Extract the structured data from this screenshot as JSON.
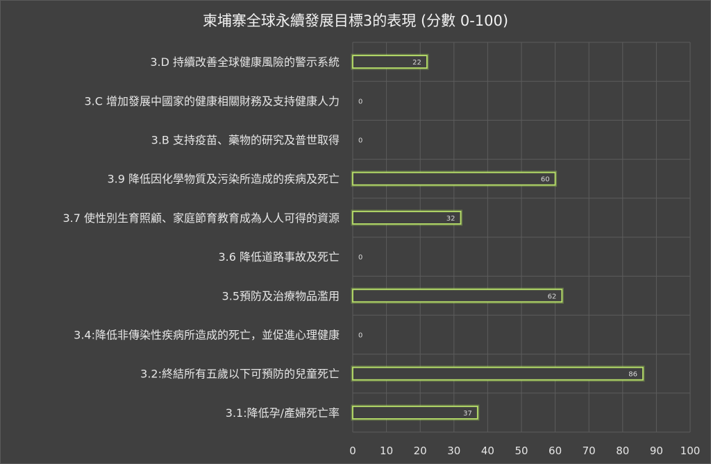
{
  "chart_data": {
    "type": "bar",
    "orientation": "horizontal",
    "title": "柬埔寨全球永續發展目標3的表現 (分數 0-100)",
    "categories": [
      "3.D 持續改善全球健康風險的警示系統",
      "3.C 增加發展中國家的健康相關財務及支持健康人力",
      "3.B 支持疫苗、藥物的研究及普世取得",
      "3.9 降低因化學物質及污染所造成的疾病及死亡",
      "3.7 使性別生育照顧、家庭節育教育成為人人可得的資源",
      "3.6 降低道路事故及死亡",
      "3.5預防及治療物品濫用",
      "3.4:降低非傳染性疾病所造成的死亡，並促進心理健康",
      "3.2:終結所有五歲以下可預防的兒童死亡",
      "3.1:降低孕/產婦死亡率"
    ],
    "values": [
      22,
      0,
      0,
      60,
      32,
      0,
      62,
      0,
      86,
      37
    ],
    "xlim": [
      0,
      100
    ],
    "x_ticks": [
      0,
      10,
      20,
      30,
      40,
      50,
      60,
      70,
      80,
      90,
      100
    ],
    "grid": true,
    "legend": "none",
    "colors": {
      "background": "#404040",
      "bar_outline": "#b8e06a",
      "text": "#e6e6e6",
      "grid": "#5c5c5c"
    }
  }
}
